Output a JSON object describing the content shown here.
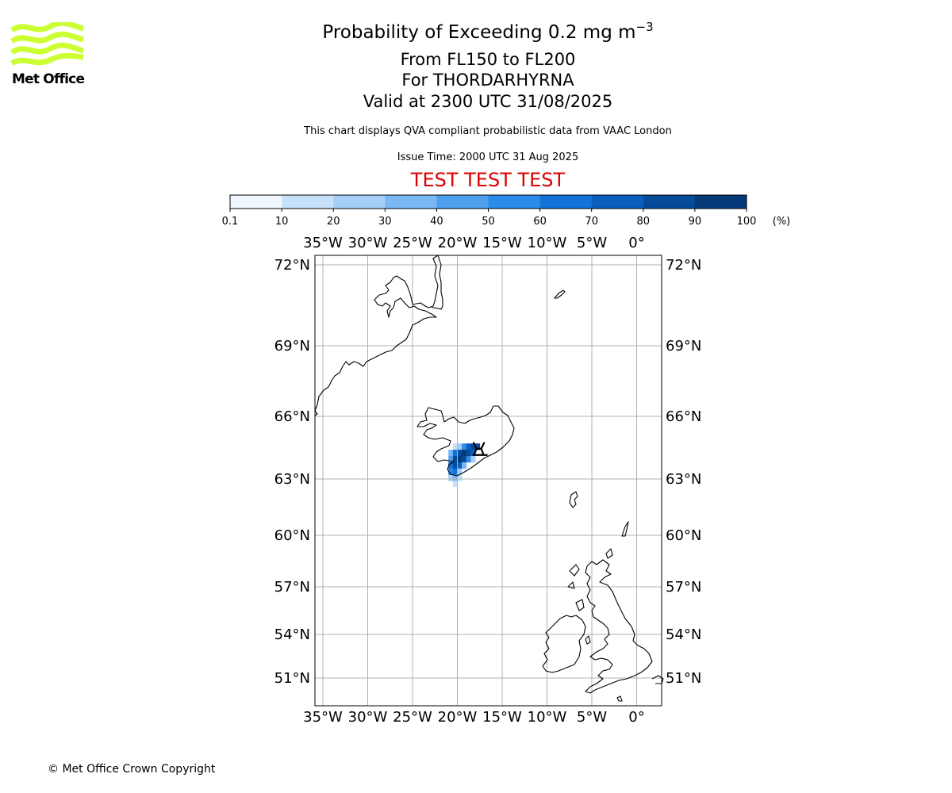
{
  "logo": {
    "text": "Met Office",
    "color": "#ccff33"
  },
  "title": {
    "main_prefix": "Probability of Exceeding 0.2 mg m",
    "main_exponent": "−3",
    "flight_levels": "From FL150 to FL200",
    "volcano": "For THORDARHYRNA",
    "valid_time": "Valid at 2300 UTC 31/08/2025"
  },
  "subtitle": "This chart displays QVA compliant probabilistic data from VAAC London",
  "issue_time": "Issue Time: 2000 UTC 31 Aug 2025",
  "test_banner": {
    "text": "TEST TEST TEST",
    "color": "#dd0000"
  },
  "colorbar": {
    "tick_labels": [
      "0.1",
      "10",
      "20",
      "30",
      "40",
      "50",
      "60",
      "70",
      "80",
      "90",
      "100"
    ],
    "unit": "(%)",
    "colors": [
      "#f0f7ff",
      "#c8e1fb",
      "#a6cff7",
      "#79b8f3",
      "#4ea0ef",
      "#2b8be8",
      "#1273d8",
      "#0a5fbe",
      "#064b9a",
      "#043a78",
      "#032a55"
    ]
  },
  "map": {
    "lon_labels": [
      "35°W",
      "30°W",
      "25°W",
      "20°W",
      "15°W",
      "10°W",
      "5°W",
      "0°"
    ],
    "lat_labels": [
      "72°N",
      "69°N",
      "66°N",
      "63°N",
      "60°N",
      "57°N",
      "54°N",
      "51°N"
    ],
    "lon_values": [
      -35,
      -30,
      -25,
      -20,
      -15,
      -10,
      -5,
      0
    ],
    "lat_values": [
      72,
      69,
      66,
      63,
      60,
      57,
      54,
      51
    ],
    "gridlines": true,
    "volcano_marker": {
      "name": "THORDARHYRNA",
      "lon": -17.6,
      "lat": 64.3
    },
    "ash_probability_cells": [
      {
        "lon": -20.25,
        "lat": 64.55,
        "p": 10
      },
      {
        "lon": -19.75,
        "lat": 64.55,
        "p": 20
      },
      {
        "lon": -19.25,
        "lat": 64.55,
        "p": 50
      },
      {
        "lon": -18.75,
        "lat": 64.55,
        "p": 70
      },
      {
        "lon": -18.25,
        "lat": 64.55,
        "p": 80
      },
      {
        "lon": -17.75,
        "lat": 64.55,
        "p": 80
      },
      {
        "lon": -20.75,
        "lat": 64.25,
        "p": 30
      },
      {
        "lon": -20.25,
        "lat": 64.25,
        "p": 60
      },
      {
        "lon": -19.75,
        "lat": 64.25,
        "p": 80
      },
      {
        "lon": -19.25,
        "lat": 64.25,
        "p": 90
      },
      {
        "lon": -18.75,
        "lat": 64.25,
        "p": 80
      },
      {
        "lon": -18.25,
        "lat": 64.25,
        "p": 70
      },
      {
        "lon": -20.75,
        "lat": 63.95,
        "p": 40
      },
      {
        "lon": -20.25,
        "lat": 63.95,
        "p": 80
      },
      {
        "lon": -19.75,
        "lat": 63.95,
        "p": 90
      },
      {
        "lon": -19.25,
        "lat": 63.95,
        "p": 80
      },
      {
        "lon": -18.75,
        "lat": 63.95,
        "p": 50
      },
      {
        "lon": -18.25,
        "lat": 63.95,
        "p": 20
      },
      {
        "lon": -20.75,
        "lat": 63.65,
        "p": 60
      },
      {
        "lon": -20.25,
        "lat": 63.65,
        "p": 80
      },
      {
        "lon": -19.75,
        "lat": 63.65,
        "p": 70
      },
      {
        "lon": -19.25,
        "lat": 63.65,
        "p": 30
      },
      {
        "lon": -20.75,
        "lat": 63.35,
        "p": 50
      },
      {
        "lon": -20.25,
        "lat": 63.35,
        "p": 60
      },
      {
        "lon": -19.75,
        "lat": 63.35,
        "p": 20
      },
      {
        "lon": -20.75,
        "lat": 63.05,
        "p": 20
      },
      {
        "lon": -20.25,
        "lat": 63.05,
        "p": 30
      },
      {
        "lon": -19.75,
        "lat": 63.05,
        "p": 10
      },
      {
        "lon": -20.25,
        "lat": 62.75,
        "p": 10
      }
    ]
  },
  "copyright": "© Met Office Crown Copyright"
}
